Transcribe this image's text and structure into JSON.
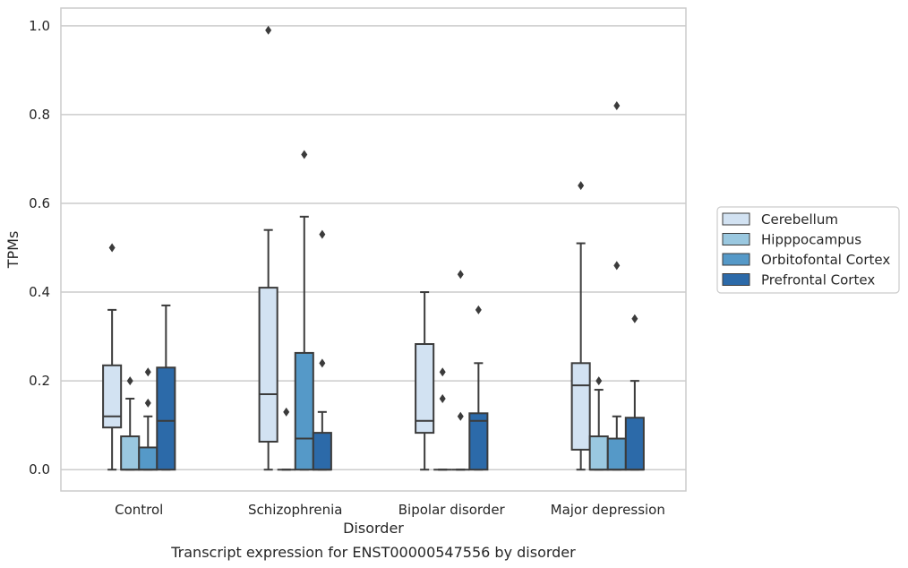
{
  "chart_data": {
    "type": "box",
    "caption": "Transcript expression for ENST00000547556 by disorder",
    "xlabel": "Disorder",
    "ylabel": "TPMs",
    "ylim": [
      -0.048,
      1.04
    ],
    "yticks": [
      0.0,
      0.2,
      0.4,
      0.6,
      0.8,
      1.0
    ],
    "ytick_labels": [
      "0.0",
      "0.2",
      "0.4",
      "0.6",
      "0.8",
      "1.0"
    ],
    "grid": "horizontal",
    "legend_position": "right",
    "categories": [
      "Control",
      "Schizophrenia",
      "Bipolar disorder",
      "Major depression"
    ],
    "series": [
      {
        "name": "Cerebellum",
        "color": "#d2e2f2",
        "boxes": [
          {
            "whisker_low": 0.0,
            "q1": 0.095,
            "median": 0.12,
            "q3": 0.235,
            "whisker_high": 0.36,
            "outliers": [
              0.5
            ]
          },
          {
            "whisker_low": 0.0,
            "q1": 0.063,
            "median": 0.17,
            "q3": 0.41,
            "whisker_high": 0.54,
            "outliers": [
              0.99
            ]
          },
          {
            "whisker_low": 0.0,
            "q1": 0.083,
            "median": 0.11,
            "q3": 0.283,
            "whisker_high": 0.4,
            "outliers": []
          },
          {
            "whisker_low": 0.0,
            "q1": 0.045,
            "median": 0.19,
            "q3": 0.24,
            "whisker_high": 0.51,
            "outliers": [
              0.64
            ]
          }
        ]
      },
      {
        "name": "Hipppocampus",
        "color": "#9ac8e0",
        "boxes": [
          {
            "whisker_low": 0.0,
            "q1": 0.0,
            "median": 0.0,
            "q3": 0.075,
            "whisker_high": 0.16,
            "outliers": [
              0.2
            ]
          },
          {
            "whisker_low": 0.0,
            "q1": 0.0,
            "median": 0.0,
            "q3": 0.0,
            "whisker_high": 0.0,
            "outliers": [
              0.13
            ]
          },
          {
            "whisker_low": 0.0,
            "q1": 0.0,
            "median": 0.0,
            "q3": 0.0,
            "whisker_high": 0.0,
            "outliers": [
              0.16,
              0.22
            ]
          },
          {
            "whisker_low": 0.0,
            "q1": 0.0,
            "median": 0.0,
            "q3": 0.075,
            "whisker_high": 0.18,
            "outliers": [
              0.2
            ]
          }
        ]
      },
      {
        "name": "Orbitofontal Cortex",
        "color": "#5599c8",
        "boxes": [
          {
            "whisker_low": 0.0,
            "q1": 0.0,
            "median": 0.0,
            "q3": 0.05,
            "whisker_high": 0.12,
            "outliers": [
              0.15,
              0.22
            ]
          },
          {
            "whisker_low": 0.0,
            "q1": 0.0,
            "median": 0.07,
            "q3": 0.263,
            "whisker_high": 0.57,
            "outliers": [
              0.71
            ]
          },
          {
            "whisker_low": 0.0,
            "q1": 0.0,
            "median": 0.0,
            "q3": 0.0,
            "whisker_high": 0.0,
            "outliers": [
              0.12,
              0.44
            ]
          },
          {
            "whisker_low": 0.0,
            "q1": 0.0,
            "median": 0.0,
            "q3": 0.07,
            "whisker_high": 0.12,
            "outliers": [
              0.46,
              0.82
            ]
          }
        ]
      },
      {
        "name": "Prefrontal Cortex",
        "color": "#2c6aa9",
        "boxes": [
          {
            "whisker_low": 0.0,
            "q1": 0.0,
            "median": 0.11,
            "q3": 0.23,
            "whisker_high": 0.37,
            "outliers": []
          },
          {
            "whisker_low": 0.0,
            "q1": 0.0,
            "median": 0.0,
            "q3": 0.083,
            "whisker_high": 0.13,
            "outliers": [
              0.24,
              0.53
            ]
          },
          {
            "whisker_low": 0.0,
            "q1": 0.0,
            "median": 0.11,
            "q3": 0.127,
            "whisker_high": 0.24,
            "outliers": [
              0.36
            ]
          },
          {
            "whisker_low": 0.0,
            "q1": 0.0,
            "median": 0.0,
            "q3": 0.117,
            "whisker_high": 0.2,
            "outliers": [
              0.34
            ]
          }
        ]
      }
    ]
  }
}
